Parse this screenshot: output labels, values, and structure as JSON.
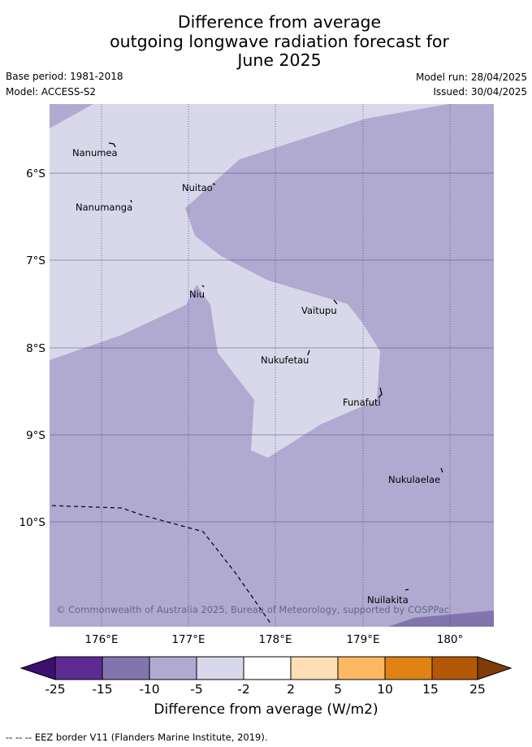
{
  "title": {
    "line1": "Difference from average",
    "line2": "outgoing longwave radiation forecast for",
    "line3": "June 2025"
  },
  "meta": {
    "base_period": "Base period: 1981-2018",
    "model": "Model: ACCESS-S2",
    "model_run": "Model run: 28/04/2025",
    "issued": "Issued: 30/04/2025"
  },
  "map": {
    "lon_ticks": [
      "176°E",
      "177°E",
      "178°E",
      "179°E",
      "180°"
    ],
    "lat_ticks": [
      "6°S",
      "7°S",
      "8°S",
      "9°S",
      "10°S"
    ],
    "islands": [
      {
        "name": "Nanumea"
      },
      {
        "name": "Nuitao"
      },
      {
        "name": "Nanumanga"
      },
      {
        "name": "Niu"
      },
      {
        "name": "Vaitupu"
      },
      {
        "name": "Nukufetau"
      },
      {
        "name": "Funafuti"
      },
      {
        "name": "Nukulaelae"
      },
      {
        "name": "Nuilakita"
      }
    ],
    "copyright": "© Commonwealth of Australia 2025, Bureau of Meteorology, supported by COSPPac"
  },
  "colorbar": {
    "ticks": [
      "-25",
      "-15",
      "-10",
      "-5",
      "-2",
      "2",
      "5",
      "10",
      "15",
      "25"
    ],
    "colors": [
      "#3d0f6e",
      "#5c2a93",
      "#8275ae",
      "#b0aad1",
      "#d8d8ea",
      "#ffffff",
      "#fddfb3",
      "#fdb863",
      "#e08214",
      "#b35806",
      "#7f3b08"
    ],
    "label": "Difference from average (W/m2)"
  },
  "footer": {
    "eez_note": "--  --  -- EEZ border V11 (Flanders Marine Institute, 2019)."
  }
}
